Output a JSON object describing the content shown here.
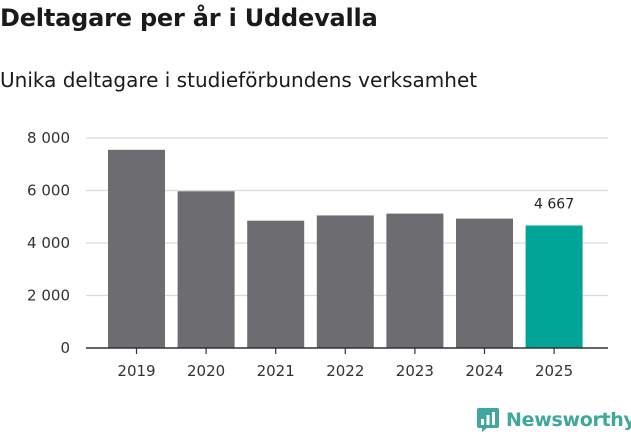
{
  "header": {
    "title": "Deltagare per år i Uddevalla",
    "subtitle": "Unika deltagare i studieförbundens verksamhet"
  },
  "branding": {
    "logo_text": "Newsworthy"
  },
  "colors": {
    "bar": "#6d6c70",
    "highlight": "#00a598",
    "grid": "#d9d9d9",
    "axis": "#333333",
    "brand": "#3fa79b"
  },
  "chart_data": {
    "type": "bar",
    "title": "Deltagare per år i Uddevalla",
    "subtitle": "Unika deltagare i studieförbundens verksamhet",
    "xlabel": "",
    "ylabel": "",
    "categories": [
      "2019",
      "2020",
      "2021",
      "2022",
      "2023",
      "2024",
      "2025"
    ],
    "values": [
      7550,
      5970,
      4850,
      5050,
      5120,
      4930,
      4667
    ],
    "highlight_index": 6,
    "data_labels": [
      {
        "index": 6,
        "text": "4 667"
      }
    ],
    "ylim": [
      0,
      8000
    ],
    "yticks": [
      0,
      2000,
      4000,
      6000,
      8000
    ],
    "ytick_labels": [
      "0",
      "2 000",
      "4 000",
      "6 000",
      "8 000"
    ],
    "grid": true,
    "legend": "none"
  }
}
